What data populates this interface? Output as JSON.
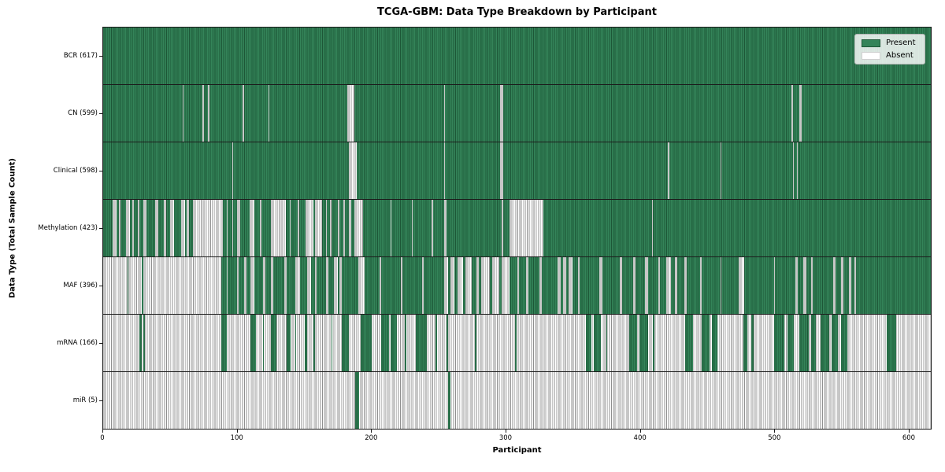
{
  "title": "TCGA-GBM: Data Type Breakdown by Participant",
  "axes": {
    "xlabel": "Participant",
    "ylabel": "Data Type (Total Sample Count)"
  },
  "legend": {
    "present_label": "Present",
    "absent_label": "Absent"
  },
  "colors": {
    "present_face": "#348459",
    "present_edge": "#1d5737",
    "absent_face": "#ffffff",
    "absent_edge": "#8f8f8f",
    "axis_line": "#1a1a1a"
  },
  "chart_data": {
    "type": "heatmap",
    "title": "TCGA-GBM: Data Type Breakdown by Participant",
    "xlabel": "Participant",
    "ylabel": "Data Type (Total Sample Count)",
    "xlim": [
      0,
      617
    ],
    "x_ticks": [
      0,
      100,
      200,
      300,
      400,
      500,
      600
    ],
    "grid": false,
    "legend_position": "upper right",
    "legend_entries": [
      "Present",
      "Absent"
    ],
    "value_states": [
      "present",
      "absent"
    ],
    "rows": [
      {
        "data_type": "BCR",
        "total_samples": 617,
        "label": "BCR (617)",
        "base_state": "present",
        "runs_state": "absent",
        "runs": []
      },
      {
        "data_type": "CN",
        "total_samples": 599,
        "label": "CN (599)",
        "base_state": "present",
        "runs_state": "absent",
        "runs": [
          [
            59,
            60
          ],
          [
            74,
            75
          ],
          [
            78,
            79
          ],
          [
            104,
            105
          ],
          [
            123,
            124
          ],
          [
            182,
            187
          ],
          [
            254,
            255
          ],
          [
            296,
            298
          ],
          [
            513,
            514
          ],
          [
            519,
            521
          ]
        ]
      },
      {
        "data_type": "Clinical",
        "total_samples": 598,
        "label": "Clinical (598)",
        "base_state": "present",
        "runs_state": "absent",
        "runs": [
          [
            96,
            97
          ],
          [
            183,
            189
          ],
          [
            254,
            255
          ],
          [
            296,
            298
          ],
          [
            421,
            422
          ],
          [
            460,
            461
          ],
          [
            514,
            515
          ],
          [
            517,
            518
          ]
        ]
      },
      {
        "data_type": "Methylation",
        "total_samples": 423,
        "label": "Methylation (423)",
        "base_state": "present",
        "runs_state": "absent",
        "runs": [
          [
            7,
            10
          ],
          [
            12,
            13
          ],
          [
            17,
            20
          ],
          [
            22,
            23
          ],
          [
            26,
            27
          ],
          [
            30,
            32
          ],
          [
            39,
            41
          ],
          [
            45,
            47
          ],
          [
            50,
            53
          ],
          [
            58,
            61
          ],
          [
            62,
            64
          ],
          [
            67,
            89
          ],
          [
            92,
            93
          ],
          [
            96,
            97
          ],
          [
            100,
            102
          ],
          [
            109,
            113
          ],
          [
            117,
            118
          ],
          [
            125,
            136
          ],
          [
            139,
            140
          ],
          [
            145,
            146
          ],
          [
            151,
            157
          ],
          [
            158,
            163
          ],
          [
            166,
            167
          ],
          [
            169,
            170
          ],
          [
            175,
            176
          ],
          [
            179,
            180
          ],
          [
            183,
            185
          ],
          [
            187,
            194
          ],
          [
            214,
            215
          ],
          [
            230,
            231
          ],
          [
            245,
            246
          ],
          [
            254,
            256
          ],
          [
            297,
            298
          ],
          [
            303,
            328
          ],
          [
            409,
            410
          ]
        ]
      },
      {
        "data_type": "MAF",
        "total_samples": 396,
        "label": "MAF (396)",
        "base_state": "present",
        "runs_state": "absent",
        "runs": [
          [
            0,
            18
          ],
          [
            19,
            29
          ],
          [
            30,
            88
          ],
          [
            92,
            93
          ],
          [
            100,
            101
          ],
          [
            105,
            107
          ],
          [
            110,
            113
          ],
          [
            119,
            121
          ],
          [
            125,
            127
          ],
          [
            135,
            137
          ],
          [
            143,
            147
          ],
          [
            152,
            155
          ],
          [
            158,
            159
          ],
          [
            166,
            168
          ],
          [
            172,
            175
          ],
          [
            176,
            178
          ],
          [
            190,
            195
          ],
          [
            206,
            207
          ],
          [
            222,
            223
          ],
          [
            238,
            239
          ],
          [
            254,
            257
          ],
          [
            259,
            262
          ],
          [
            264,
            268
          ],
          [
            270,
            275
          ],
          [
            278,
            280
          ],
          [
            282,
            288
          ],
          [
            290,
            295
          ],
          [
            297,
            303
          ],
          [
            309,
            310
          ],
          [
            315,
            317
          ],
          [
            325,
            327
          ],
          [
            339,
            341
          ],
          [
            343,
            345
          ],
          [
            347,
            350
          ],
          [
            354,
            355
          ],
          [
            370,
            372
          ],
          [
            385,
            387
          ],
          [
            395,
            397
          ],
          [
            404,
            406
          ],
          [
            414,
            415
          ],
          [
            420,
            423
          ],
          [
            426,
            428
          ],
          [
            433,
            435
          ],
          [
            445,
            446
          ],
          [
            460,
            461
          ],
          [
            474,
            478
          ],
          [
            500,
            501
          ],
          [
            516,
            518
          ],
          [
            522,
            524
          ],
          [
            528,
            529
          ],
          [
            544,
            546
          ],
          [
            550,
            552
          ],
          [
            556,
            558
          ],
          [
            560,
            561
          ]
        ]
      },
      {
        "data_type": "mRNA",
        "total_samples": 166,
        "label": "mRNA (166)",
        "base_state": "absent",
        "runs_state": "present",
        "runs": [
          [
            27,
            29
          ],
          [
            30,
            31
          ],
          [
            88,
            92
          ],
          [
            110,
            114
          ],
          [
            119,
            120
          ],
          [
            125,
            129
          ],
          [
            137,
            140
          ],
          [
            143,
            144
          ],
          [
            150,
            152
          ],
          [
            157,
            158
          ],
          [
            170,
            171
          ],
          [
            178,
            183
          ],
          [
            192,
            200
          ],
          [
            207,
            213
          ],
          [
            214,
            219
          ],
          [
            225,
            226
          ],
          [
            233,
            241
          ],
          [
            248,
            249
          ],
          [
            256,
            257
          ],
          [
            277,
            278
          ],
          [
            307,
            308
          ],
          [
            360,
            364
          ],
          [
            366,
            371
          ],
          [
            375,
            376
          ],
          [
            392,
            398
          ],
          [
            400,
            406
          ],
          [
            410,
            411
          ],
          [
            434,
            440
          ],
          [
            446,
            452
          ],
          [
            454,
            458
          ],
          [
            477,
            480
          ],
          [
            483,
            485
          ],
          [
            500,
            508
          ],
          [
            510,
            515
          ],
          [
            519,
            526
          ],
          [
            528,
            531
          ],
          [
            535,
            541
          ],
          [
            543,
            548
          ],
          [
            550,
            555
          ],
          [
            584,
            591
          ]
        ]
      },
      {
        "data_type": "miR",
        "total_samples": 5,
        "label": "miR (5)",
        "base_state": "absent",
        "runs_state": "present",
        "runs": [
          [
            188,
            191
          ],
          [
            257,
            259
          ]
        ]
      }
    ]
  }
}
